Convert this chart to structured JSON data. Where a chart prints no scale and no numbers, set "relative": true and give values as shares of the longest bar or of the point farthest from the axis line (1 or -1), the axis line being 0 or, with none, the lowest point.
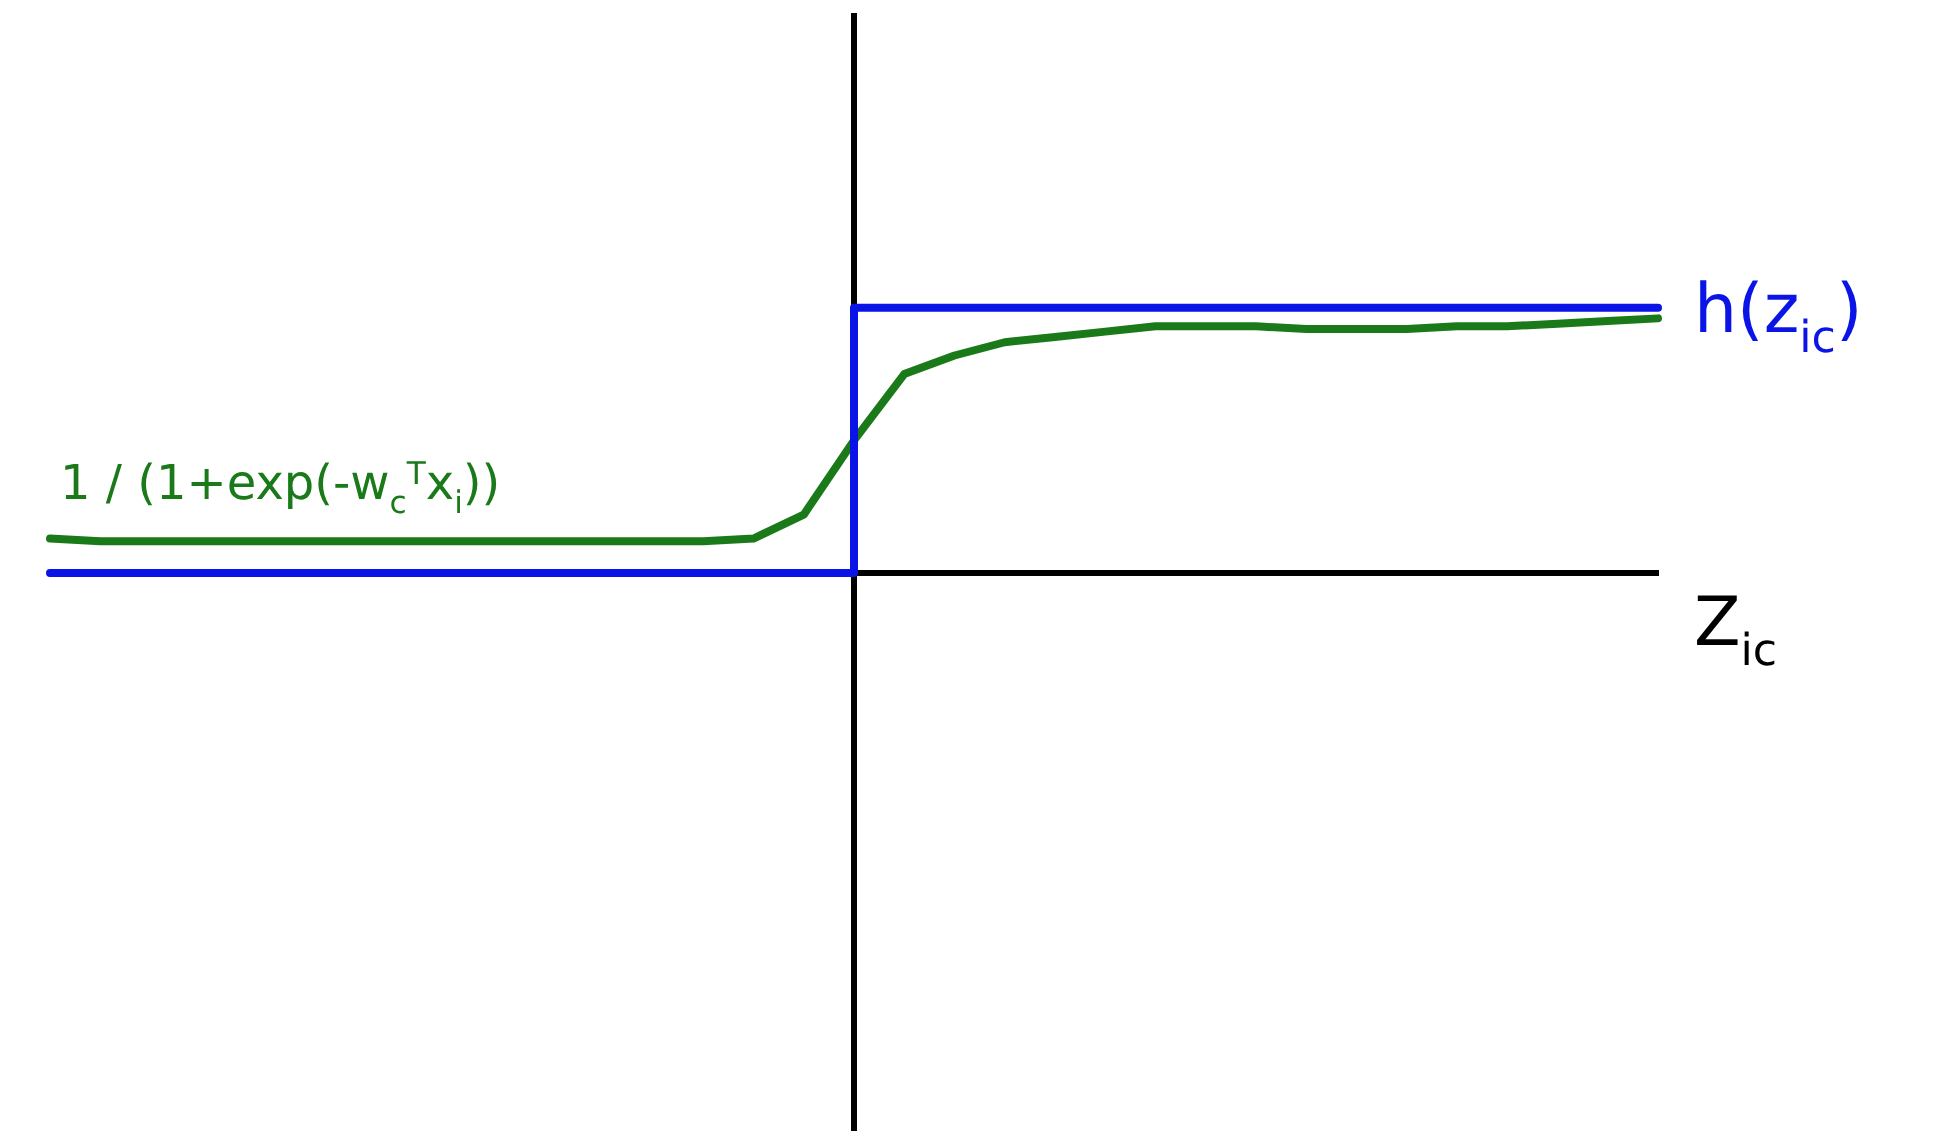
{
  "chart_data": {
    "type": "line",
    "relative": true,
    "xlabel": "Z$_{ic}$",
    "categories": [
      null,
      null,
      null,
      null,
      null,
      null,
      null,
      null,
      null,
      null,
      null,
      null,
      null,
      null,
      null,
      null,
      null,
      null,
      null,
      null,
      null,
      null,
      null,
      null,
      null,
      null,
      null,
      null,
      null,
      null,
      null,
      null,
      null
    ],
    "series": [
      {
        "name": "h(z$_{ic}$)",
        "type": "step",
        "color": "#0a14e6",
        "values": [
          0,
          0,
          0,
          0,
          0,
          0,
          0,
          0,
          0,
          0,
          0,
          0,
          0,
          0,
          0,
          0,
          1,
          1,
          1,
          1,
          1,
          1,
          1,
          1,
          1,
          1,
          1,
          1,
          1,
          1,
          1,
          1,
          1
        ]
      },
      {
        "name": "1 / (1+exp(-w$_{c}$$^{T}$x$_{i}$))",
        "type": "line",
        "color": "#1a7a1a",
        "values": [
          0.13,
          0.12,
          0.12,
          0.12,
          0.12,
          0.12,
          0.12,
          0.12,
          0.12,
          0.12,
          0.12,
          0.12,
          0.12,
          0.12,
          0.13,
          0.22,
          0.5,
          0.75,
          0.82,
          0.87,
          0.89,
          0.91,
          0.93,
          0.93,
          0.93,
          0.92,
          0.92,
          0.92,
          0.93,
          0.93,
          0.94,
          0.95,
          0.96
        ]
      }
    ]
  }
}
